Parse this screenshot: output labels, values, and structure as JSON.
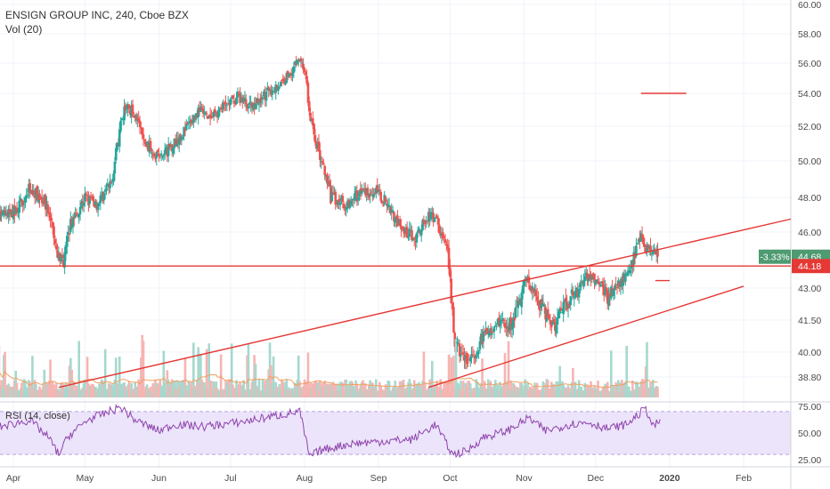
{
  "header": {
    "symbol_line": "ENSIGN GROUP INC, 240, Cboe BZX",
    "volume_label": "Vol (20)"
  },
  "rsi_label": "RSI (14, close)",
  "colors": {
    "up": "#26a69a",
    "down": "#ef5350",
    "volume_up": "#a6d8ce",
    "volume_down": "#f5b5b3",
    "volume_ma": "#f0a060",
    "rsi_line": "#8e44ad",
    "rsi_band": "#ece4fa",
    "trendline": "#e53935",
    "price_tag_green": "#4e9a71",
    "price_tag_red": "#e53935"
  },
  "chart_data": {
    "type": "candlestick",
    "price_axis": {
      "ticks": [
        60.0,
        58.0,
        56.0,
        54.0,
        52.0,
        50.0,
        48.0,
        46.0,
        43.0,
        41.5,
        40.0,
        38.8
      ],
      "tick_labels": [
        "60.00",
        "58.00",
        "56.00",
        "54.00",
        "52.00",
        "50.00",
        "48.00",
        "46.00",
        "43.00",
        "41.50",
        "40.00",
        "38.80"
      ],
      "ylim": [
        38.05,
        60.2
      ]
    },
    "rsi_axis": {
      "ticks": [
        75,
        50,
        25
      ],
      "tick_labels": [
        "75.00",
        "50.00",
        "25.00"
      ],
      "ylim": [
        21,
        79
      ],
      "band": [
        30,
        70
      ]
    },
    "time_axis": {
      "labels": [
        "Apr",
        "May",
        "Jun",
        "Jul",
        "Aug",
        "Sep",
        "Oct",
        "Nov",
        "Dec",
        "2020",
        "Feb"
      ],
      "dates": [
        "2019-04-01",
        "2019-05-01",
        "2019-06-01",
        "2019-07-01",
        "2019-08-01",
        "2019-09-01",
        "2019-10-01",
        "2019-11-01",
        "2019-12-01",
        "2020-01-01",
        "2020-02-01"
      ],
      "bold": [
        "2020"
      ]
    },
    "price_path": {
      "dates": [
        "2019-03-25",
        "2019-04-02",
        "2019-04-08",
        "2019-04-14",
        "2019-04-17",
        "2019-04-19",
        "2019-04-22",
        "2019-04-25",
        "2019-05-01",
        "2019-05-06",
        "2019-05-12",
        "2019-05-16",
        "2019-05-18",
        "2019-05-22",
        "2019-05-26",
        "2019-06-02",
        "2019-06-06",
        "2019-06-12",
        "2019-06-18",
        "2019-06-22",
        "2019-06-27",
        "2019-07-04",
        "2019-07-10",
        "2019-07-16",
        "2019-07-22",
        "2019-07-27",
        "2019-07-30",
        "2019-08-01",
        "2019-08-02",
        "2019-08-03",
        "2019-08-06",
        "2019-08-12",
        "2019-08-18",
        "2019-08-24",
        "2019-08-30",
        "2019-09-05",
        "2019-09-11",
        "2019-09-17",
        "2019-09-22",
        "2019-09-26",
        "2019-09-30",
        "2019-10-03",
        "2019-10-09",
        "2019-10-15",
        "2019-10-21",
        "2019-10-27",
        "2019-11-02",
        "2019-11-06",
        "2019-11-10",
        "2019-11-14",
        "2019-11-18",
        "2019-11-24",
        "2019-11-28",
        "2019-12-02",
        "2019-12-06",
        "2019-12-10",
        "2019-12-14",
        "2019-12-18",
        "2019-12-20",
        "2019-12-24",
        "2019-12-27"
      ],
      "close": [
        46.8,
        47.2,
        48.5,
        47.8,
        46.5,
        44.8,
        44.5,
        46.5,
        48.0,
        47.6,
        48.8,
        52.0,
        53.2,
        52.8,
        51.0,
        50.2,
        50.8,
        51.8,
        53.0,
        52.4,
        53.0,
        53.8,
        53.2,
        54.0,
        54.6,
        55.6,
        56.4,
        55.5,
        54.5,
        52.8,
        51.0,
        48.0,
        47.6,
        48.2,
        48.4,
        47.6,
        46.0,
        45.8,
        47.0,
        46.5,
        44.8,
        40.3,
        39.4,
        40.8,
        41.5,
        41.2,
        43.5,
        42.5,
        41.8,
        41.2,
        42.2,
        43.0,
        43.7,
        43.3,
        42.6,
        43.2,
        43.6,
        45.0,
        45.6,
        44.9,
        44.68
      ]
    },
    "current_price": 44.68,
    "change_percent": "-3.33%",
    "price_label": "44.68",
    "support_price": 44.18,
    "support_label": "44.18",
    "trendlines": [
      {
        "points": [
          [
            "2019-04-20",
            38.3
          ],
          [
            "2020-03-01",
            46.75
          ]
        ]
      },
      {
        "points": [
          [
            "2019-09-22",
            38.3
          ],
          [
            "2020-02-01",
            43.1
          ]
        ]
      },
      {
        "points": [
          [
            "2019-03-25",
            44.18
          ],
          [
            "2020-03-10",
            44.18
          ]
        ]
      }
    ],
    "short_levels": [
      {
        "price": 54.0,
        "from": "2019-12-20",
        "to": "2020-01-08"
      },
      {
        "price": 43.4,
        "from": "2019-12-26",
        "to": "2020-01-01"
      }
    ],
    "rsi_path": {
      "dates": [
        "2019-03-25",
        "2019-04-08",
        "2019-04-16",
        "2019-04-20",
        "2019-04-24",
        "2019-05-02",
        "2019-05-16",
        "2019-05-22",
        "2019-06-01",
        "2019-06-08",
        "2019-06-20",
        "2019-07-05",
        "2019-07-20",
        "2019-07-30",
        "2019-08-01",
        "2019-08-03",
        "2019-08-08",
        "2019-08-20",
        "2019-09-01",
        "2019-09-15",
        "2019-09-25",
        "2019-09-29",
        "2019-10-02",
        "2019-10-08",
        "2019-10-15",
        "2019-10-25",
        "2019-11-03",
        "2019-11-10",
        "2019-11-20",
        "2019-11-28",
        "2019-12-06",
        "2019-12-14",
        "2019-12-22",
        "2019-12-25",
        "2019-12-28"
      ],
      "values": [
        55,
        62,
        45,
        30,
        47,
        62,
        74,
        62,
        52,
        58,
        56,
        60,
        66,
        70,
        50,
        28,
        34,
        40,
        42,
        44,
        58,
        42,
        30,
        33,
        46,
        52,
        64,
        52,
        58,
        60,
        54,
        58,
        73,
        56,
        61
      ]
    },
    "volume_max": 100
  }
}
